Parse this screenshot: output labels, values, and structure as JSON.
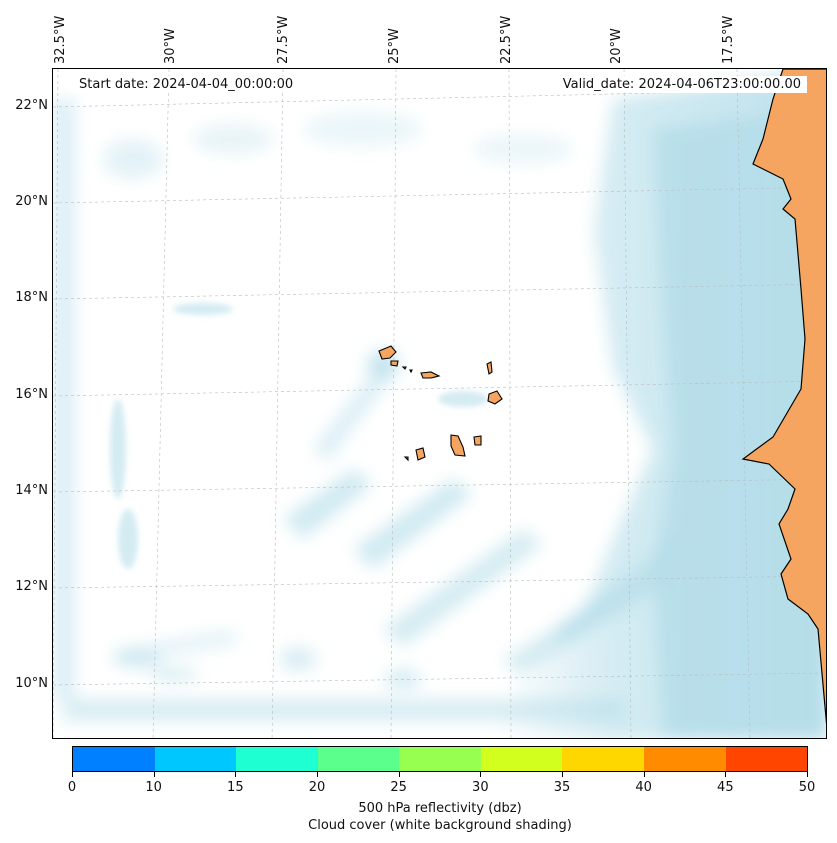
{
  "map": {
    "start_label": "Start date: 2024-04-04_00:00:00",
    "valid_label": "Valid_date: 2024-04-06T23:00:00.00",
    "land_color": "#f5a55f",
    "cloud_color": "#a9d8e6",
    "lon_labels": [
      "32.5°W",
      "30°W",
      "27.5°W",
      "25°W",
      "22.5°W",
      "20°W",
      "17.5°W"
    ],
    "lat_labels": [
      "22°N",
      "20°N",
      "18°N",
      "16°N",
      "14°N",
      "12°N",
      "10°N"
    ]
  },
  "colorbar": {
    "colors": [
      "#0080ff",
      "#00c8ff",
      "#1effd2",
      "#5aff8c",
      "#96ff50",
      "#d2ff1e",
      "#ffd700",
      "#ff8c00",
      "#ff4500"
    ],
    "ticks": [
      "0",
      "10",
      "15",
      "20",
      "25",
      "30",
      "35",
      "40",
      "45",
      "50"
    ],
    "label": "500 hPa reflectivity (dbz)",
    "sublabel": "Cloud cover (white background shading)"
  }
}
